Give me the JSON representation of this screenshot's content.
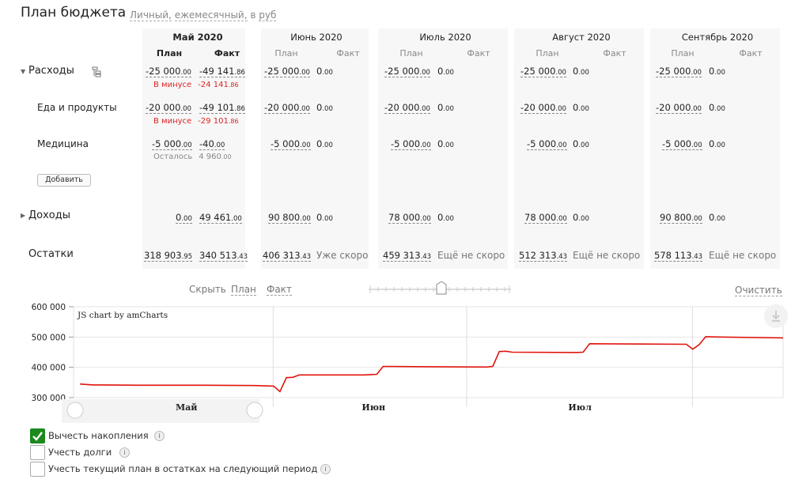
{
  "header": {
    "title": "План бюджета",
    "filters": [
      "Личный,",
      "ежемесячный,",
      "в",
      "руб"
    ]
  },
  "columns": {
    "plan_label": "План",
    "fact_label": "Факт",
    "months": [
      "Май 2020",
      "Июнь 2020",
      "Июль 2020",
      "Август 2020",
      "Сентябрь 2020"
    ]
  },
  "expenses": {
    "label": "Расходы",
    "total": [
      {
        "plan": "-25 000",
        "plan_dec": ".00",
        "fact": "-49 141",
        "fact_dec": ".86",
        "note_label": "В минусе",
        "note_value": "-24 141",
        "note_dec": ".86"
      },
      {
        "plan": "-25 000",
        "plan_dec": ".00",
        "fact": "0",
        "fact_dec": ".00"
      },
      {
        "plan": "-25 000",
        "plan_dec": ".00",
        "fact": "0",
        "fact_dec": ".00"
      },
      {
        "plan": "-25 000",
        "plan_dec": ".00",
        "fact": "0",
        "fact_dec": ".00"
      },
      {
        "plan": "-25 000",
        "plan_dec": ".00",
        "fact": "0",
        "fact_dec": ".00"
      }
    ],
    "food": {
      "label": "Еда и продукты",
      "cells": [
        {
          "plan": "-20 000",
          "plan_dec": ".00",
          "fact": "-49 101",
          "fact_dec": ".86",
          "note_label": "В минусе",
          "note_value": "-29 101",
          "note_dec": ".86"
        },
        {
          "plan": "-20 000",
          "plan_dec": ".00",
          "fact": "0",
          "fact_dec": ".00"
        },
        {
          "plan": "-20 000",
          "plan_dec": ".00",
          "fact": "0",
          "fact_dec": ".00"
        },
        {
          "plan": "-20 000",
          "plan_dec": ".00",
          "fact": "0",
          "fact_dec": ".00"
        },
        {
          "plan": "-20 000",
          "plan_dec": ".00",
          "fact": "0",
          "fact_dec": ".00"
        }
      ]
    },
    "medicine": {
      "label": "Медицина",
      "cells": [
        {
          "plan": "-5 000",
          "plan_dec": ".00",
          "fact": "-40",
          "fact_dec": ".00",
          "note_label": "Осталось",
          "note_value": "4 960",
          "note_dec": ".00"
        },
        {
          "plan": "-5 000",
          "plan_dec": ".00",
          "fact": "0",
          "fact_dec": ".00"
        },
        {
          "plan": "-5 000",
          "plan_dec": ".00",
          "fact": "0",
          "fact_dec": ".00"
        },
        {
          "plan": "-5 000",
          "plan_dec": ".00",
          "fact": "0",
          "fact_dec": ".00"
        },
        {
          "plan": "-5 000",
          "plan_dec": ".00",
          "fact": "0",
          "fact_dec": ".00"
        }
      ]
    },
    "add_label": "Добавить"
  },
  "income": {
    "label": "Доходы",
    "cells": [
      {
        "plan": "0",
        "plan_dec": ".00",
        "fact": "49 461",
        "fact_dec": ".00"
      },
      {
        "plan": "90 800",
        "plan_dec": ".00",
        "fact": "0",
        "fact_dec": ".00"
      },
      {
        "plan": "78 000",
        "plan_dec": ".00",
        "fact": "0",
        "fact_dec": ".00"
      },
      {
        "plan": "78 000",
        "plan_dec": ".00",
        "fact": "0",
        "fact_dec": ".00"
      },
      {
        "plan": "90 800",
        "plan_dec": ".00",
        "fact": "0",
        "fact_dec": ".00"
      }
    ]
  },
  "balances": {
    "label": "Остатки",
    "cells": [
      {
        "plan": "318 903",
        "plan_dec": ".95",
        "fact": "340 513",
        "fact_dec": ".43"
      },
      {
        "plan": "406 313",
        "plan_dec": ".43",
        "status": "Уже скоро"
      },
      {
        "plan": "459 313",
        "plan_dec": ".43",
        "status": "Ещё не скоро"
      },
      {
        "plan": "512 313",
        "plan_dec": ".43",
        "status": "Ещё не скоро"
      },
      {
        "plan": "578 113",
        "plan_dec": ".43",
        "status": "Ещё не скоро"
      }
    ]
  },
  "chart_controls": {
    "hide_label": "Скрыть",
    "plan_label": "План",
    "fact_label": "Факт",
    "clear_label": "Очистить",
    "slider_value": 0.48
  },
  "chart_data": {
    "type": "line",
    "credit": "JS chart by amCharts",
    "y_ticks": [
      "600 000",
      "500 000",
      "400 000",
      "300 000"
    ],
    "ylim": [
      300000,
      600000
    ],
    "x_ticks": [
      "Май",
      "Июн",
      "Июл"
    ],
    "grid": true,
    "series": [
      {
        "color": "#e0140c",
        "points": [
          [
            1,
            345000
          ],
          [
            3,
            342000
          ],
          [
            10,
            341000
          ],
          [
            20,
            341000
          ],
          [
            28,
            340000
          ],
          [
            31,
            338000
          ],
          [
            32,
            320000
          ],
          [
            33,
            366000
          ],
          [
            34,
            367000
          ],
          [
            35,
            375000
          ],
          [
            45,
            375000
          ],
          [
            46,
            376000
          ],
          [
            47,
            377000
          ],
          [
            48,
            403000
          ],
          [
            55,
            402000
          ],
          [
            64,
            401000
          ],
          [
            65,
            403000
          ],
          [
            66,
            452000
          ],
          [
            67,
            453000
          ],
          [
            68,
            450000
          ],
          [
            78,
            449000
          ],
          [
            79,
            450000
          ],
          [
            80,
            478000
          ],
          [
            88,
            477000
          ],
          [
            95,
            476000
          ],
          [
            96,
            460000
          ],
          [
            97,
            475000
          ],
          [
            98,
            501000
          ],
          [
            100,
            500000
          ],
          [
            110,
            497000
          ]
        ]
      }
    ]
  },
  "options": [
    {
      "label": "Вычесть накопления",
      "checked": true
    },
    {
      "label": "Учесть долги",
      "checked": false
    },
    {
      "label": "Учесть текущий план в остатках на следующий период",
      "checked": false
    }
  ],
  "icons": {
    "expand": "triangle-down-icon",
    "collapse": "triangle-right-icon",
    "structure": "hierarchy-icon",
    "download": "download-icon",
    "info": "info-icon",
    "check": "check-icon"
  }
}
